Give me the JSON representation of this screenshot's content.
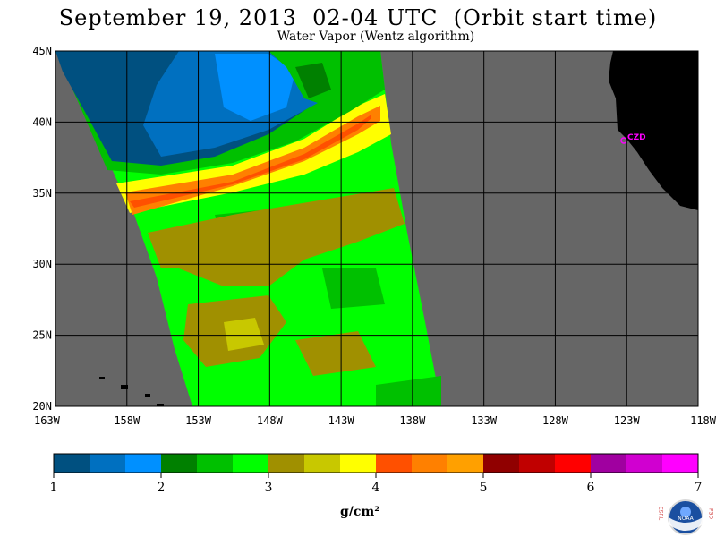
{
  "header": {
    "title": "September 19, 2013  02-04 UTC  (Orbit start time)",
    "subtitle": "Water Vapor (Wentz algorithm)"
  },
  "map": {
    "lat_labels": [
      "45N",
      "40N",
      "35N",
      "30N",
      "25N",
      "20N"
    ],
    "lon_labels": [
      "163W",
      "158W",
      "153W",
      "148W",
      "143W",
      "138W",
      "133W",
      "128W",
      "123W",
      "118W"
    ],
    "station_label": "CZD",
    "colors": {
      "ocean_no_data": "#666666",
      "land": "#000000",
      "station": "#ff00ff"
    }
  },
  "colorbar": {
    "ticks": [
      "1",
      "2",
      "3",
      "4",
      "5",
      "6",
      "7"
    ],
    "unit": "g/cm²",
    "colors": [
      "#005080",
      "#0070c0",
      "#0090ff",
      "#008000",
      "#00c000",
      "#00ff00",
      "#a09000",
      "#c8c800",
      "#ffff00",
      "#ff5000",
      "#ff8000",
      "#ffa000",
      "#900000",
      "#c00000",
      "#ff0000",
      "#a000a0",
      "#d000d0",
      "#ff00ff"
    ]
  },
  "logo": {
    "left_letters": "ESRL",
    "right_letters": "PSD",
    "center_text": "NOAA"
  }
}
